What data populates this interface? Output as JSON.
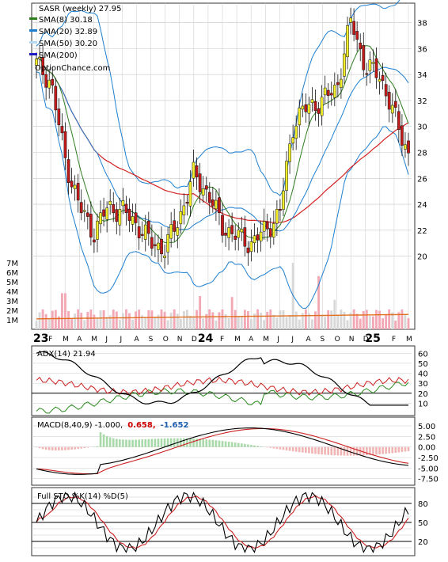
{
  "colors": {
    "frame": "#333333",
    "grid": "#c8c8c8",
    "candle_up": "#f5f029",
    "candle_down": "#c41a1a",
    "sma8": "#2e7d1f",
    "sma20": "#1e7fd0",
    "sma50": "#d42020",
    "sma200": "#1c1cc0",
    "volume": "#f2a9b5",
    "volume_avg": "#e07020",
    "adx": "#000000",
    "plus_di": "#2a8a1f",
    "minus_di": "#cc2020",
    "macd": "#000000",
    "signal": "#cc2020",
    "hist_pos": "#a8d9a8",
    "hist_neg": "#f0b4b4",
    "sto_k": "#000000",
    "sto_d": "#cc2020",
    "macd_val2": "#cc0000",
    "macd_val3": "#1e5fb0"
  },
  "legend": {
    "ticker": "SASR (weekly) 27.95",
    "sma8": "SMA(8) 30.18",
    "sma20": "SMA(20) 32.89",
    "sma50": "SMA(50) 30.20",
    "sma200": "SMA(200)",
    "source": "OptionChance.com"
  },
  "x_axis": {
    "year_labels": [
      "23",
      "24",
      "25"
    ],
    "month_labels": [
      "F",
      "M",
      "A",
      "M",
      "J",
      "J",
      "A",
      "S",
      "O",
      "N",
      "D",
      "F",
      "M",
      "A",
      "M",
      "J",
      "J",
      "A",
      "S",
      "O",
      "N",
      "D",
      "F",
      "M"
    ]
  },
  "price_axis": [
    "38",
    "36",
    "34",
    "32",
    "30",
    "28",
    "26",
    "24",
    "22",
    "20"
  ],
  "volume_axis": [
    "7M",
    "6M",
    "5M",
    "4M",
    "3M",
    "2M",
    "1M"
  ],
  "adx_panel": {
    "label": "ADX(14) 21.94",
    "ticks": [
      "60",
      "50",
      "40",
      "30",
      "20",
      "10"
    ]
  },
  "macd_panel": {
    "label": "MACD(8,40,9) -1.000,",
    "value2": "0.658,",
    "value3": "-1.652",
    "ticks": [
      "5.00",
      "2.50",
      "0.00",
      "-2.50",
      "-5.00",
      "-7.50"
    ]
  },
  "sto_panel": {
    "label": "Full STO %K(14) %D(5)",
    "ticks": [
      "80",
      "50",
      "20"
    ]
  },
  "chart_data": {
    "type": "candlestick",
    "title": "SASR (weekly) 27.95",
    "period": "2023-01 to 2025-03, weekly",
    "price_range": [
      19,
      39.5
    ],
    "sma_last": {
      "sma8": 30.18,
      "sma20": 32.89,
      "sma50": 30.2
    },
    "monthly_closes": [
      {
        "month": "2023-01",
        "close": 34.8
      },
      {
        "month": "2023-02",
        "close": 33.5
      },
      {
        "month": "2023-03",
        "close": 27.5
      },
      {
        "month": "2023-04",
        "close": 23.8
      },
      {
        "month": "2023-05",
        "close": 21.8
      },
      {
        "month": "2023-06",
        "close": 23.8
      },
      {
        "month": "2023-07",
        "close": 23.5
      },
      {
        "month": "2023-08",
        "close": 22.5
      },
      {
        "month": "2023-09",
        "close": 21.0
      },
      {
        "month": "2023-10",
        "close": 20.6
      },
      {
        "month": "2023-11",
        "close": 23.0
      },
      {
        "month": "2023-12",
        "close": 26.3
      },
      {
        "month": "2024-01",
        "close": 24.8
      },
      {
        "month": "2024-02",
        "close": 22.3
      },
      {
        "month": "2024-03",
        "close": 21.5
      },
      {
        "month": "2024-04",
        "close": 21.0
      },
      {
        "month": "2024-05",
        "close": 22.0
      },
      {
        "month": "2024-06",
        "close": 23.3
      },
      {
        "month": "2024-07",
        "close": 30.5
      },
      {
        "month": "2024-08",
        "close": 31.5
      },
      {
        "month": "2024-09",
        "close": 32.0
      },
      {
        "month": "2024-10",
        "close": 33.0
      },
      {
        "month": "2024-11",
        "close": 38.2
      },
      {
        "month": "2024-12",
        "close": 34.5
      },
      {
        "month": "2025-01",
        "close": 34.0
      },
      {
        "month": "2025-02",
        "close": 30.8
      },
      {
        "month": "2025-03",
        "close": 27.95
      }
    ],
    "adx": {
      "last": 21.94,
      "range": [
        0,
        65
      ]
    },
    "macd": {
      "macd": -1.0,
      "signal": 0.658,
      "histogram": -1.652,
      "range": [
        -8.5,
        6.5
      ]
    },
    "stochastic": {
      "range": [
        0,
        100
      ],
      "levels": [
        20,
        50,
        80
      ]
    }
  }
}
